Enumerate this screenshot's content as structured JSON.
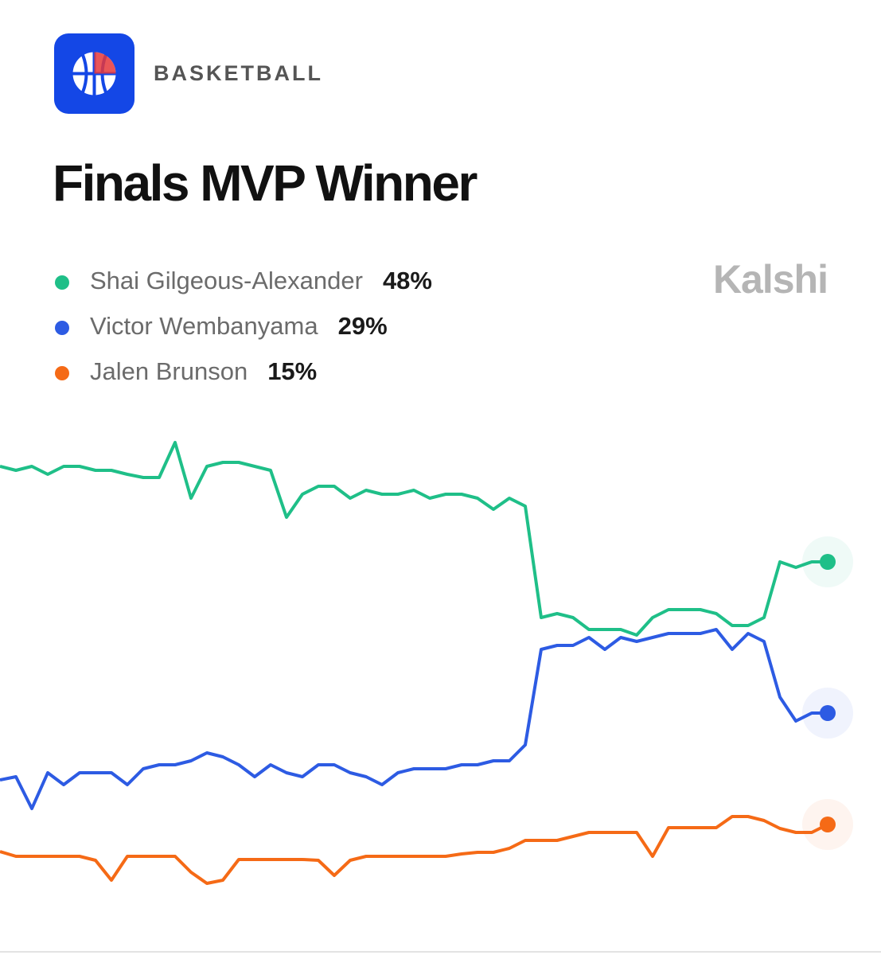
{
  "header": {
    "category": "BASKETBALL",
    "brand": "Kalshi"
  },
  "chart_data": {
    "type": "line",
    "title": "Finals MVP Winner",
    "series": [
      {
        "name": "Shai Gilgeous-Alexander",
        "color": "#1fbf88",
        "current": {
          "value": 48,
          "label": "48%"
        },
        "values": [
          60,
          59.5,
          60,
          59,
          60,
          60,
          59.5,
          59.5,
          59,
          58.6,
          58.6,
          63,
          56,
          60,
          60.5,
          60.5,
          60,
          59.5,
          53.6,
          56.5,
          57.5,
          57.5,
          56,
          57,
          56.5,
          56.5,
          57,
          56,
          56.5,
          56.5,
          56,
          54.6,
          56,
          55,
          41,
          41.5,
          41,
          39.5,
          39.5,
          39.5,
          38.8,
          41,
          42,
          42,
          42,
          41.5,
          40,
          40,
          41,
          48,
          47.3,
          48,
          48
        ]
      },
      {
        "name": "Victor Wembanyama",
        "color": "#2d5be3",
        "current": {
          "value": 29,
          "label": "29%"
        },
        "values": [
          20.6,
          21,
          17,
          21.5,
          20,
          21.5,
          21.5,
          21.5,
          20,
          22,
          22.5,
          22.5,
          23,
          24,
          23.5,
          22.5,
          21,
          22.5,
          21.5,
          21,
          22.5,
          22.5,
          21.5,
          21,
          20,
          21.5,
          22,
          22,
          22,
          22.5,
          22.5,
          23,
          23,
          25,
          37,
          37.5,
          37.5,
          38.5,
          37,
          38.5,
          38,
          38.5,
          39,
          39,
          39,
          39.5,
          37,
          39,
          38,
          31,
          28,
          29,
          29
        ]
      },
      {
        "name": "Jalen Brunson",
        "color": "#f56a16",
        "current": {
          "value": 15,
          "label": "15%"
        },
        "values": [
          11.6,
          11,
          11,
          11,
          11,
          11,
          10.5,
          8,
          11,
          11,
          11,
          11,
          9,
          7.6,
          8,
          10.6,
          10.6,
          10.6,
          10.6,
          10.6,
          10.5,
          8.6,
          10.5,
          11,
          11,
          11,
          11,
          11,
          11,
          11.3,
          11.5,
          11.5,
          12,
          13,
          13,
          13,
          13.5,
          14,
          14,
          14,
          14,
          11,
          14.6,
          14.6,
          14.6,
          14.6,
          16,
          16,
          15.5,
          14.5,
          14,
          14,
          15
        ]
      }
    ]
  }
}
